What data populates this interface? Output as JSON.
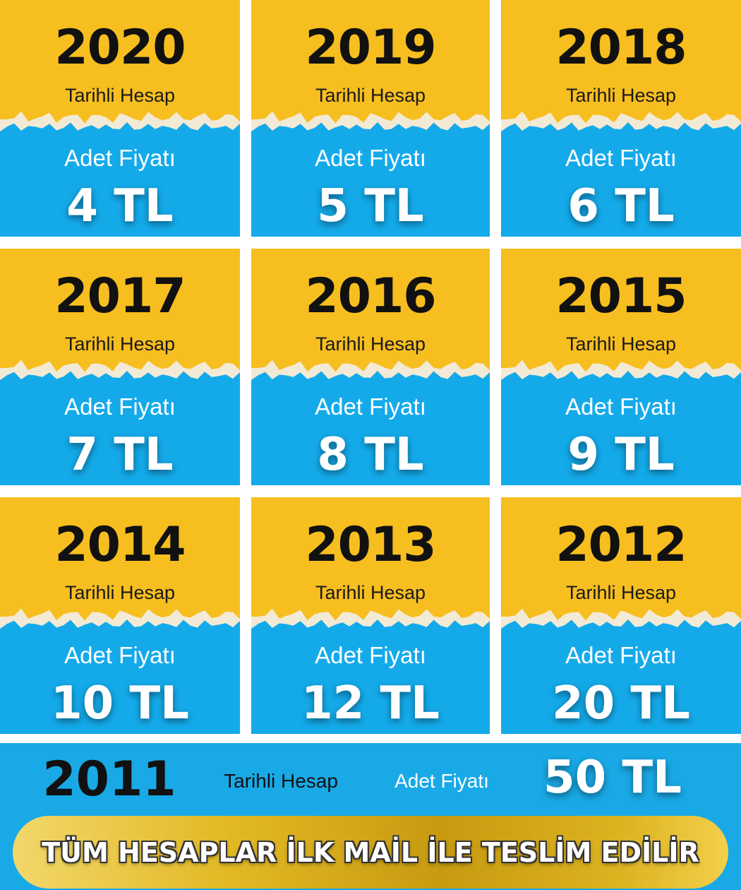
{
  "cards": [
    {
      "year": "2020",
      "subtitle": "Tarihli Hesap",
      "label": "Adet Fiyatı",
      "price": "4 TL"
    },
    {
      "year": "2019",
      "subtitle": "Tarihli Hesap",
      "label": "Adet Fiyatı",
      "price": "5 TL"
    },
    {
      "year": "2018",
      "subtitle": "Tarihli Hesap",
      "label": "Adet Fiyatı",
      "price": "6 TL"
    },
    {
      "year": "2017",
      "subtitle": "Tarihli Hesap",
      "label": "Adet Fiyatı",
      "price": "7 TL"
    },
    {
      "year": "2016",
      "subtitle": "Tarihli Hesap",
      "label": "Adet Fiyatı",
      "price": "8 TL"
    },
    {
      "year": "2015",
      "subtitle": "Tarihli Hesap",
      "label": "Adet Fiyatı",
      "price": "9 TL"
    },
    {
      "year": "2014",
      "subtitle": "Tarihli Hesap",
      "label": "Adet Fiyatı",
      "price": "10 TL"
    },
    {
      "year": "2013",
      "subtitle": "Tarihli Hesap",
      "label": "Adet Fiyatı",
      "price": "12 TL"
    },
    {
      "year": "2012",
      "subtitle": "Tarihli Hesap",
      "label": "Adet Fiyatı",
      "price": "20 TL"
    }
  ],
  "footer_row": {
    "year": "2011",
    "subtitle": "Tarihli Hesap",
    "label": "Adet Fiyatı",
    "price": "50 TL"
  },
  "banner": "TÜM HESAPLAR İLK MAİL İLE TESLİM EDİLİR"
}
